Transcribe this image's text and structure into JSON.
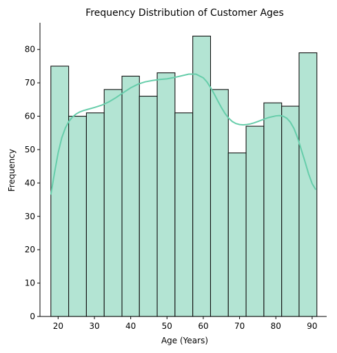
{
  "chart_data": {
    "type": "bar",
    "title": "Frequency Distribution of Customer Ages",
    "xlabel": "Age (Years)",
    "ylabel": "Frequency",
    "xlim": [
      15,
      94
    ],
    "ylim": [
      0,
      88
    ],
    "xticks": [
      20,
      30,
      40,
      50,
      60,
      70,
      80,
      90
    ],
    "yticks": [
      0,
      10,
      20,
      30,
      40,
      50,
      60,
      70,
      80
    ],
    "bins": [
      {
        "start": 18.0,
        "end": 22.9,
        "count": 75
      },
      {
        "start": 22.9,
        "end": 27.8,
        "count": 60
      },
      {
        "start": 27.8,
        "end": 32.7,
        "count": 61
      },
      {
        "start": 32.7,
        "end": 37.6,
        "count": 68
      },
      {
        "start": 37.6,
        "end": 42.4,
        "count": 72
      },
      {
        "start": 42.4,
        "end": 47.3,
        "count": 66
      },
      {
        "start": 47.3,
        "end": 52.2,
        "count": 73
      },
      {
        "start": 52.2,
        "end": 57.1,
        "count": 61
      },
      {
        "start": 57.1,
        "end": 62.0,
        "count": 84
      },
      {
        "start": 62.0,
        "end": 66.9,
        "count": 68
      },
      {
        "start": 66.9,
        "end": 71.8,
        "count": 49
      },
      {
        "start": 71.8,
        "end": 76.7,
        "count": 57
      },
      {
        "start": 76.7,
        "end": 81.6,
        "count": 64
      },
      {
        "start": 81.6,
        "end": 86.4,
        "count": 63
      },
      {
        "start": 86.4,
        "end": 91.3,
        "count": 79
      }
    ],
    "kde_curve": {
      "x": [
        18,
        19,
        20,
        21,
        22,
        23,
        24,
        25,
        26,
        27,
        28,
        30,
        32,
        34,
        36,
        38,
        40,
        42,
        44,
        46,
        48,
        50,
        52,
        54,
        56,
        58,
        60,
        61,
        62,
        63,
        64,
        65,
        66,
        67,
        68,
        69,
        70,
        71,
        72,
        73,
        74,
        75,
        76,
        78,
        80,
        81,
        82,
        83,
        84,
        85,
        86,
        87,
        88,
        89,
        90,
        91
      ],
      "y": [
        36.5,
        43,
        49,
        53.5,
        56.5,
        58.5,
        59.8,
        60.7,
        61.3,
        61.7,
        62.0,
        62.6,
        63.3,
        64.3,
        65.6,
        67.1,
        68.5,
        69.6,
        70.3,
        70.7,
        71.0,
        71.2,
        71.6,
        72.1,
        72.6,
        72.6,
        71.5,
        70.3,
        68.6,
        66.7,
        64.6,
        62.6,
        60.8,
        59.4,
        58.4,
        57.8,
        57.5,
        57.4,
        57.5,
        57.7,
        58.0,
        58.4,
        58.8,
        59.6,
        60.1,
        60.2,
        60.0,
        59.4,
        58.2,
        56.3,
        53.5,
        50.0,
        46.5,
        42.8,
        39.8,
        38.0
      ]
    },
    "colors": {
      "bar_fill": "#b3e4d3",
      "bar_edge": "#111111",
      "kde_line": "#66cdaa"
    },
    "grid": false,
    "legend": "none"
  }
}
